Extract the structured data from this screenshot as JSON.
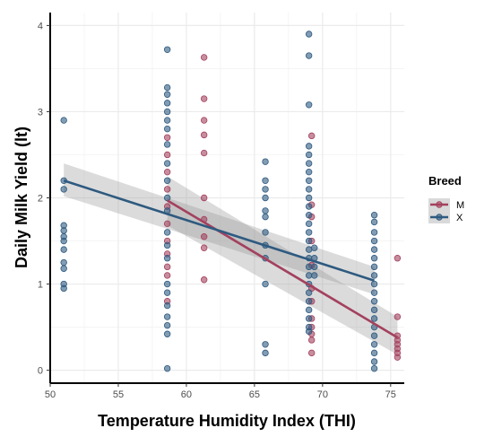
{
  "chart_data": {
    "type": "scatter",
    "xlabel": "Temperature Humidity Index (THI)",
    "ylabel": "Daily Milk Yield (lt)",
    "xlim": [
      50,
      76
    ],
    "ylim": [
      -0.15,
      4.15
    ],
    "xticks": [
      50,
      55,
      60,
      65,
      70,
      75
    ],
    "yticks": [
      0,
      1,
      2,
      3,
      4
    ],
    "grid": true,
    "legend": {
      "title": "Breed",
      "position": "right"
    },
    "series": [
      {
        "name": "M",
        "color": "#a3415e",
        "points": [
          [
            58.6,
            2.7
          ],
          [
            58.6,
            2.5
          ],
          [
            58.6,
            2.3
          ],
          [
            58.6,
            2.1
          ],
          [
            58.6,
            1.9
          ],
          [
            58.6,
            1.7
          ],
          [
            58.6,
            1.5
          ],
          [
            58.6,
            1.35
          ],
          [
            58.6,
            1.2
          ],
          [
            58.6,
            1.1
          ],
          [
            58.6,
            0.8
          ],
          [
            61.3,
            3.63
          ],
          [
            61.3,
            3.15
          ],
          [
            61.3,
            2.9
          ],
          [
            61.3,
            2.73
          ],
          [
            61.3,
            2.52
          ],
          [
            61.3,
            2.0
          ],
          [
            61.3,
            1.75
          ],
          [
            61.3,
            1.55
          ],
          [
            61.3,
            1.42
          ],
          [
            61.3,
            1.05
          ],
          [
            69.2,
            2.72
          ],
          [
            69.2,
            1.92
          ],
          [
            69.2,
            1.78
          ],
          [
            69.2,
            1.5
          ],
          [
            69.2,
            1.22
          ],
          [
            69.2,
            0.95
          ],
          [
            69.2,
            0.8
          ],
          [
            69.2,
            0.6
          ],
          [
            69.2,
            0.5
          ],
          [
            69.2,
            0.42
          ],
          [
            69.2,
            0.35
          ],
          [
            69.2,
            0.2
          ],
          [
            75.5,
            1.3
          ],
          [
            75.5,
            0.62
          ],
          [
            75.5,
            0.4
          ],
          [
            75.5,
            0.35
          ],
          [
            75.5,
            0.3
          ],
          [
            75.5,
            0.25
          ],
          [
            75.5,
            0.2
          ],
          [
            75.5,
            0.15
          ]
        ],
        "fit": {
          "x": [
            58.6,
            75.5
          ],
          "y": [
            1.97,
            0.38
          ],
          "ci_low": [
            1.68,
            0.18
          ],
          "ci_high": [
            2.25,
            0.62
          ]
        }
      },
      {
        "name": "X",
        "color": "#2e5a80",
        "points": [
          [
            51,
            2.9
          ],
          [
            51,
            2.2
          ],
          [
            51,
            2.1
          ],
          [
            51,
            1.68
          ],
          [
            51,
            1.62
          ],
          [
            51,
            1.55
          ],
          [
            51,
            1.5
          ],
          [
            51,
            1.4
          ],
          [
            51,
            1.25
          ],
          [
            51,
            1.18
          ],
          [
            51,
            1.0
          ],
          [
            51,
            0.95
          ],
          [
            58.6,
            3.72
          ],
          [
            58.6,
            3.28
          ],
          [
            58.6,
            3.2
          ],
          [
            58.6,
            3.1
          ],
          [
            58.6,
            3.0
          ],
          [
            58.6,
            2.9
          ],
          [
            58.6,
            2.8
          ],
          [
            58.6,
            2.62
          ],
          [
            58.6,
            2.4
          ],
          [
            58.6,
            2.2
          ],
          [
            58.6,
            2.0
          ],
          [
            58.6,
            1.85
          ],
          [
            58.6,
            1.6
          ],
          [
            58.6,
            1.45
          ],
          [
            58.6,
            1.3
          ],
          [
            58.6,
            1.0
          ],
          [
            58.6,
            0.9
          ],
          [
            58.6,
            0.75
          ],
          [
            58.6,
            0.62
          ],
          [
            58.6,
            0.52
          ],
          [
            58.6,
            0.42
          ],
          [
            58.6,
            0.02
          ],
          [
            65.8,
            2.42
          ],
          [
            65.8,
            2.2
          ],
          [
            65.8,
            2.1
          ],
          [
            65.8,
            2.0
          ],
          [
            65.8,
            1.85
          ],
          [
            65.8,
            1.78
          ],
          [
            65.8,
            1.6
          ],
          [
            65.8,
            1.45
          ],
          [
            65.8,
            1.3
          ],
          [
            65.8,
            1.0
          ],
          [
            65.8,
            0.3
          ],
          [
            65.8,
            0.2
          ],
          [
            69,
            3.9
          ],
          [
            69,
            3.65
          ],
          [
            69,
            3.08
          ],
          [
            69,
            2.6
          ],
          [
            69,
            2.5
          ],
          [
            69,
            2.4
          ],
          [
            69,
            2.3
          ],
          [
            69,
            2.2
          ],
          [
            69,
            2.1
          ],
          [
            69,
            2.0
          ],
          [
            69,
            1.9
          ],
          [
            69,
            1.8
          ],
          [
            69,
            1.7
          ],
          [
            69,
            1.6
          ],
          [
            69,
            1.5
          ],
          [
            69,
            1.4
          ],
          [
            69,
            1.3
          ],
          [
            69,
            1.2
          ],
          [
            69,
            1.1
          ],
          [
            69,
            1.0
          ],
          [
            69,
            0.9
          ],
          [
            69,
            0.8
          ],
          [
            69,
            0.7
          ],
          [
            69,
            0.6
          ],
          [
            69,
            0.5
          ],
          [
            69,
            0.45
          ],
          [
            69.4,
            1.42
          ],
          [
            69.4,
            1.3
          ],
          [
            69.4,
            1.2
          ],
          [
            69.4,
            1.1
          ],
          [
            73.8,
            1.8
          ],
          [
            73.8,
            1.72
          ],
          [
            73.8,
            1.6
          ],
          [
            73.8,
            1.5
          ],
          [
            73.8,
            1.4
          ],
          [
            73.8,
            1.3
          ],
          [
            73.8,
            1.2
          ],
          [
            73.8,
            1.1
          ],
          [
            73.8,
            1.0
          ],
          [
            73.8,
            0.9
          ],
          [
            73.8,
            0.8
          ],
          [
            73.8,
            0.7
          ],
          [
            73.8,
            0.6
          ],
          [
            73.8,
            0.5
          ],
          [
            73.8,
            0.4
          ],
          [
            73.8,
            0.3
          ],
          [
            73.8,
            0.2
          ],
          [
            73.8,
            0.1
          ],
          [
            73.8,
            0.02
          ]
        ],
        "fit": {
          "x": [
            51,
            73.8
          ],
          "y": [
            2.2,
            1.04
          ],
          "ci_low": [
            2.02,
            0.88
          ],
          "ci_high": [
            2.4,
            1.2
          ]
        }
      }
    ]
  }
}
